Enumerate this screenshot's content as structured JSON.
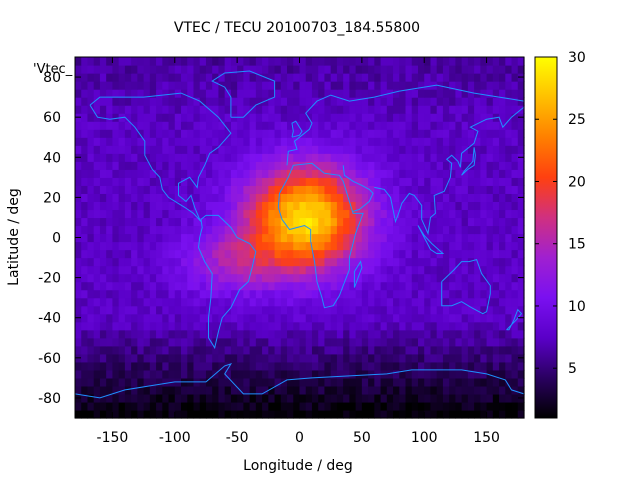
{
  "chart_data": {
    "type": "heatmap",
    "title": "VTEC / TECU 20100703_184.55800",
    "xlabel": "Longitude / deg",
    "ylabel": "Latitude / deg",
    "corner_label": "'Vtec_",
    "xlim": [
      -180,
      180
    ],
    "ylim": [
      -90,
      90
    ],
    "x_ticks": [
      -150,
      -100,
      -50,
      0,
      50,
      100,
      150
    ],
    "y_ticks": [
      -80,
      -60,
      -40,
      -20,
      0,
      20,
      40,
      60,
      80
    ],
    "colorbar": {
      "range": [
        1,
        30
      ],
      "ticks": [
        5,
        10,
        15,
        20,
        25,
        30
      ],
      "colors": [
        "#000000",
        "#2a0060",
        "#5a00c8",
        "#7a10f0",
        "#a020d0",
        "#d03080",
        "#ff4010",
        "#ff8000",
        "#ffc000",
        "#ffff00"
      ]
    },
    "grid": false,
    "overlay": "coastlines",
    "coastline_color": "#1e90ff",
    "peak_region": {
      "lon": [
        -50,
        50
      ],
      "lat": [
        -20,
        40
      ],
      "max_value": 30
    },
    "dark_region": {
      "lat_range": [
        -90,
        -45
      ],
      "min_value": 1
    }
  }
}
